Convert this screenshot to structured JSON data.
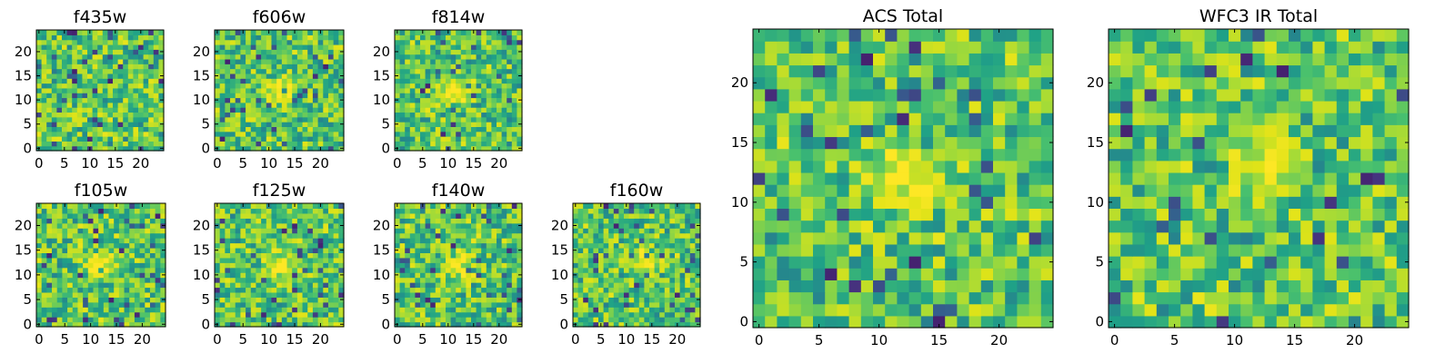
{
  "chart_data": [
    {
      "type": "heatmap",
      "title": "f435w",
      "grid": [
        25,
        25
      ],
      "xticks": [
        "0",
        "5",
        "10",
        "15",
        "20"
      ],
      "yticks": [
        "0",
        "5",
        "10",
        "15",
        "20"
      ],
      "hotspot": [
        null,
        null
      ],
      "seed": 11,
      "colormap": "viridis"
    },
    {
      "type": "heatmap",
      "title": "f606w",
      "grid": [
        25,
        25
      ],
      "xticks": [
        "0",
        "5",
        "10",
        "15",
        "20"
      ],
      "yticks": [
        "0",
        "5",
        "10",
        "15",
        "20"
      ],
      "hotspot": [
        12,
        12
      ],
      "seed": 23,
      "colormap": "viridis"
    },
    {
      "type": "heatmap",
      "title": "f814w",
      "grid": [
        25,
        25
      ],
      "xticks": [
        "0",
        "5",
        "10",
        "15",
        "20"
      ],
      "yticks": [
        "0",
        "5",
        "10",
        "15",
        "20"
      ],
      "hotspot": [
        12,
        12
      ],
      "seed": 37,
      "colormap": "viridis"
    },
    {
      "type": "heatmap",
      "title": "f105w",
      "grid": [
        25,
        25
      ],
      "xticks": [
        "0",
        "5",
        "10",
        "15",
        "20"
      ],
      "yticks": [
        "0",
        "5",
        "10",
        "15",
        "20"
      ],
      "hotspot": [
        12,
        12
      ],
      "seed": 41,
      "colormap": "viridis"
    },
    {
      "type": "heatmap",
      "title": "f125w",
      "grid": [
        25,
        25
      ],
      "xticks": [
        "0",
        "5",
        "10",
        "15",
        "20"
      ],
      "yticks": [
        "0",
        "5",
        "10",
        "15",
        "20"
      ],
      "hotspot": [
        12,
        12
      ],
      "seed": 53,
      "colormap": "viridis"
    },
    {
      "type": "heatmap",
      "title": "f140w",
      "grid": [
        25,
        25
      ],
      "xticks": [
        "0",
        "5",
        "10",
        "15",
        "20"
      ],
      "yticks": [
        "0",
        "5",
        "10",
        "15",
        "20"
      ],
      "hotspot": [
        12,
        12
      ],
      "seed": 67,
      "colormap": "viridis"
    },
    {
      "type": "heatmap",
      "title": "f160w",
      "grid": [
        25,
        25
      ],
      "xticks": [
        "0",
        "5",
        "10",
        "15",
        "20"
      ],
      "yticks": [
        "0",
        "5",
        "10",
        "15",
        "20"
      ],
      "hotspot": [
        13,
        13
      ],
      "seed": 79,
      "colormap": "viridis"
    },
    {
      "type": "heatmap",
      "title": "ACS Total",
      "grid": [
        25,
        25
      ],
      "xticks": [
        "0",
        "5",
        "10",
        "15",
        "20"
      ],
      "yticks": [
        "0",
        "5",
        "10",
        "15",
        "20"
      ],
      "hotspot": [
        12,
        12
      ],
      "seed": 83,
      "colormap": "viridis"
    },
    {
      "type": "heatmap",
      "title": "WFC3 IR Total",
      "grid": [
        25,
        25
      ],
      "xticks": [
        "0",
        "5",
        "10",
        "15",
        "20"
      ],
      "yticks": [
        "0",
        "5",
        "10",
        "15",
        "20"
      ],
      "hotspot": [
        13,
        13
      ],
      "seed": 97,
      "colormap": "viridis"
    }
  ]
}
